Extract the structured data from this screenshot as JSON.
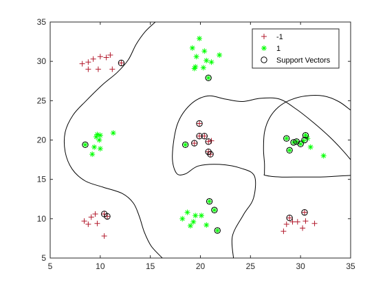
{
  "chart_data": {
    "type": "scatter",
    "title": "",
    "xlabel": "",
    "ylabel": "",
    "xlim": [
      5,
      35
    ],
    "ylim": [
      5,
      35
    ],
    "xticks": [
      5,
      10,
      15,
      20,
      25,
      30,
      35
    ],
    "yticks": [
      5,
      10,
      15,
      20,
      25,
      30,
      35
    ],
    "grid": false,
    "legend_position": "top-right",
    "series": [
      {
        "name": "-1",
        "marker": "plus",
        "color": "#b2182b",
        "points": [
          [
            8.2,
            29.7
          ],
          [
            8.8,
            29.0
          ],
          [
            8.8,
            29.9
          ],
          [
            9.3,
            30.3
          ],
          [
            9.8,
            29.0
          ],
          [
            10.0,
            30.6
          ],
          [
            10.6,
            30.5
          ],
          [
            11.0,
            30.8
          ],
          [
            11.2,
            29.0
          ],
          [
            12.1,
            29.8
          ],
          [
            8.4,
            9.7
          ],
          [
            8.8,
            9.3
          ],
          [
            9.1,
            10.2
          ],
          [
            9.5,
            10.6
          ],
          [
            9.7,
            9.4
          ],
          [
            10.4,
            10.6
          ],
          [
            10.7,
            10.3
          ],
          [
            10.4,
            7.8
          ],
          [
            19.4,
            19.6
          ],
          [
            19.9,
            22.1
          ],
          [
            19.9,
            20.5
          ],
          [
            20.4,
            20.5
          ],
          [
            20.8,
            19.8
          ],
          [
            21.1,
            19.9
          ],
          [
            20.8,
            18.5
          ],
          [
            21.0,
            18.2
          ],
          [
            28.3,
            8.4
          ],
          [
            28.6,
            9.3
          ],
          [
            28.9,
            10.1
          ],
          [
            29.2,
            9.6
          ],
          [
            29.7,
            9.6
          ],
          [
            30.2,
            8.8
          ],
          [
            30.4,
            10.8
          ],
          [
            30.5,
            9.7
          ],
          [
            31.4,
            9.4
          ]
        ]
      },
      {
        "name": "1",
        "marker": "asterisk",
        "color": "#00ff00",
        "points": [
          [
            9.2,
            18.2
          ],
          [
            9.4,
            19.1
          ],
          [
            9.6,
            20.4
          ],
          [
            9.7,
            20.7
          ],
          [
            9.9,
            20.0
          ],
          [
            10.0,
            18.9
          ],
          [
            10.0,
            20.6
          ],
          [
            11.3,
            20.9
          ],
          [
            8.5,
            19.4
          ],
          [
            19.2,
            31.7
          ],
          [
            19.4,
            29.1
          ],
          [
            19.5,
            29.3
          ],
          [
            19.6,
            30.6
          ],
          [
            19.9,
            32.9
          ],
          [
            20.3,
            29.2
          ],
          [
            20.4,
            31.3
          ],
          [
            20.6,
            30.1
          ],
          [
            21.1,
            29.9
          ],
          [
            21.9,
            30.8
          ],
          [
            20.8,
            27.9
          ],
          [
            18.2,
            10.0
          ],
          [
            18.7,
            10.8
          ],
          [
            19.0,
            9.1
          ],
          [
            19.3,
            9.6
          ],
          [
            19.5,
            10.4
          ],
          [
            20.1,
            10.4
          ],
          [
            20.6,
            9.2
          ],
          [
            20.9,
            12.2
          ],
          [
            21.4,
            11.1
          ],
          [
            21.7,
            8.5
          ],
          [
            18.5,
            19.4
          ],
          [
            28.6,
            20.2
          ],
          [
            28.9,
            18.7
          ],
          [
            29.3,
            19.7
          ],
          [
            29.6,
            19.8
          ],
          [
            30.0,
            19.5
          ],
          [
            30.3,
            19.9
          ],
          [
            30.5,
            20.6
          ],
          [
            30.7,
            20.2
          ],
          [
            31.0,
            19.1
          ],
          [
            32.3,
            18.0
          ]
        ]
      },
      {
        "name": "Support Vectors",
        "marker": "circle",
        "color": "#000000",
        "points": [
          [
            12.1,
            29.8
          ],
          [
            10.4,
            10.6
          ],
          [
            10.7,
            10.3
          ],
          [
            19.4,
            19.6
          ],
          [
            19.9,
            22.1
          ],
          [
            19.9,
            20.5
          ],
          [
            20.4,
            20.5
          ],
          [
            20.8,
            19.8
          ],
          [
            20.8,
            18.5
          ],
          [
            21.0,
            18.2
          ],
          [
            28.9,
            10.1
          ],
          [
            30.4,
            10.8
          ],
          [
            8.5,
            19.4
          ],
          [
            18.5,
            19.4
          ],
          [
            20.8,
            27.9
          ],
          [
            20.9,
            12.2
          ],
          [
            21.4,
            11.1
          ],
          [
            21.7,
            8.5
          ],
          [
            28.6,
            20.2
          ],
          [
            28.9,
            18.7
          ],
          [
            29.3,
            19.7
          ],
          [
            29.6,
            19.8
          ],
          [
            30.0,
            19.5
          ],
          [
            30.4,
            20.0
          ],
          [
            30.5,
            20.6
          ]
        ]
      }
    ],
    "decision_boundaries": [
      {
        "name": "outer-boundary",
        "points": [
          [
            15.5,
            35
          ],
          [
            14.5,
            33.8
          ],
          [
            13.6,
            32.2
          ],
          [
            12.8,
            30.2
          ],
          [
            11.7,
            28.6
          ],
          [
            10.2,
            27.0
          ],
          [
            8.6,
            25.0
          ],
          [
            7.3,
            23.2
          ],
          [
            6.5,
            21.0
          ],
          [
            6.5,
            18.5
          ],
          [
            7.2,
            16.3
          ],
          [
            8.5,
            14.8
          ],
          [
            10.3,
            14.0
          ],
          [
            12.2,
            13.2
          ],
          [
            13.3,
            12.0
          ],
          [
            13.9,
            10.3
          ],
          [
            14.4,
            8.3
          ],
          [
            15.1,
            6.5
          ],
          [
            16.2,
            5
          ]
        ]
      },
      {
        "name": "middle-boundary",
        "points": [
          [
            23.3,
            5
          ],
          [
            23.2,
            7.8
          ],
          [
            24.3,
            10.5
          ],
          [
            25.3,
            12.6
          ],
          [
            25.4,
            15.4
          ],
          [
            24.1,
            16.4
          ],
          [
            21.9,
            16.9
          ],
          [
            19.8,
            16.7
          ],
          [
            18.5,
            15.7
          ],
          [
            17.6,
            15.8
          ],
          [
            17.2,
            18.0
          ],
          [
            17.7,
            22.0
          ],
          [
            19.0,
            24.5
          ],
          [
            20.7,
            25.6
          ],
          [
            22.5,
            25.2
          ],
          [
            24.2,
            24.9
          ],
          [
            26.0,
            25.3
          ],
          [
            27.9,
            25.2
          ],
          [
            29.6,
            23.9
          ],
          [
            31.3,
            22.2
          ],
          [
            32.9,
            20.4
          ],
          [
            34.2,
            18.7
          ],
          [
            35.0,
            17.5
          ]
        ]
      },
      {
        "name": "right-loop-boundary",
        "points": [
          [
            35.0,
            23.8
          ],
          [
            33.8,
            24.9
          ],
          [
            32.3,
            25.6
          ],
          [
            30.5,
            25.6
          ],
          [
            29.0,
            25.1
          ],
          [
            27.8,
            24.2
          ],
          [
            26.9,
            22.8
          ],
          [
            26.4,
            21.0
          ],
          [
            26.3,
            18.8
          ],
          [
            26.4,
            17.0
          ],
          [
            26.4,
            15.8
          ],
          [
            26.5,
            15.5
          ],
          [
            28.0,
            15.3
          ],
          [
            30.0,
            15.3
          ],
          [
            32.0,
            15.3
          ],
          [
            33.5,
            15.4
          ],
          [
            35.0,
            15.5
          ]
        ]
      }
    ]
  }
}
